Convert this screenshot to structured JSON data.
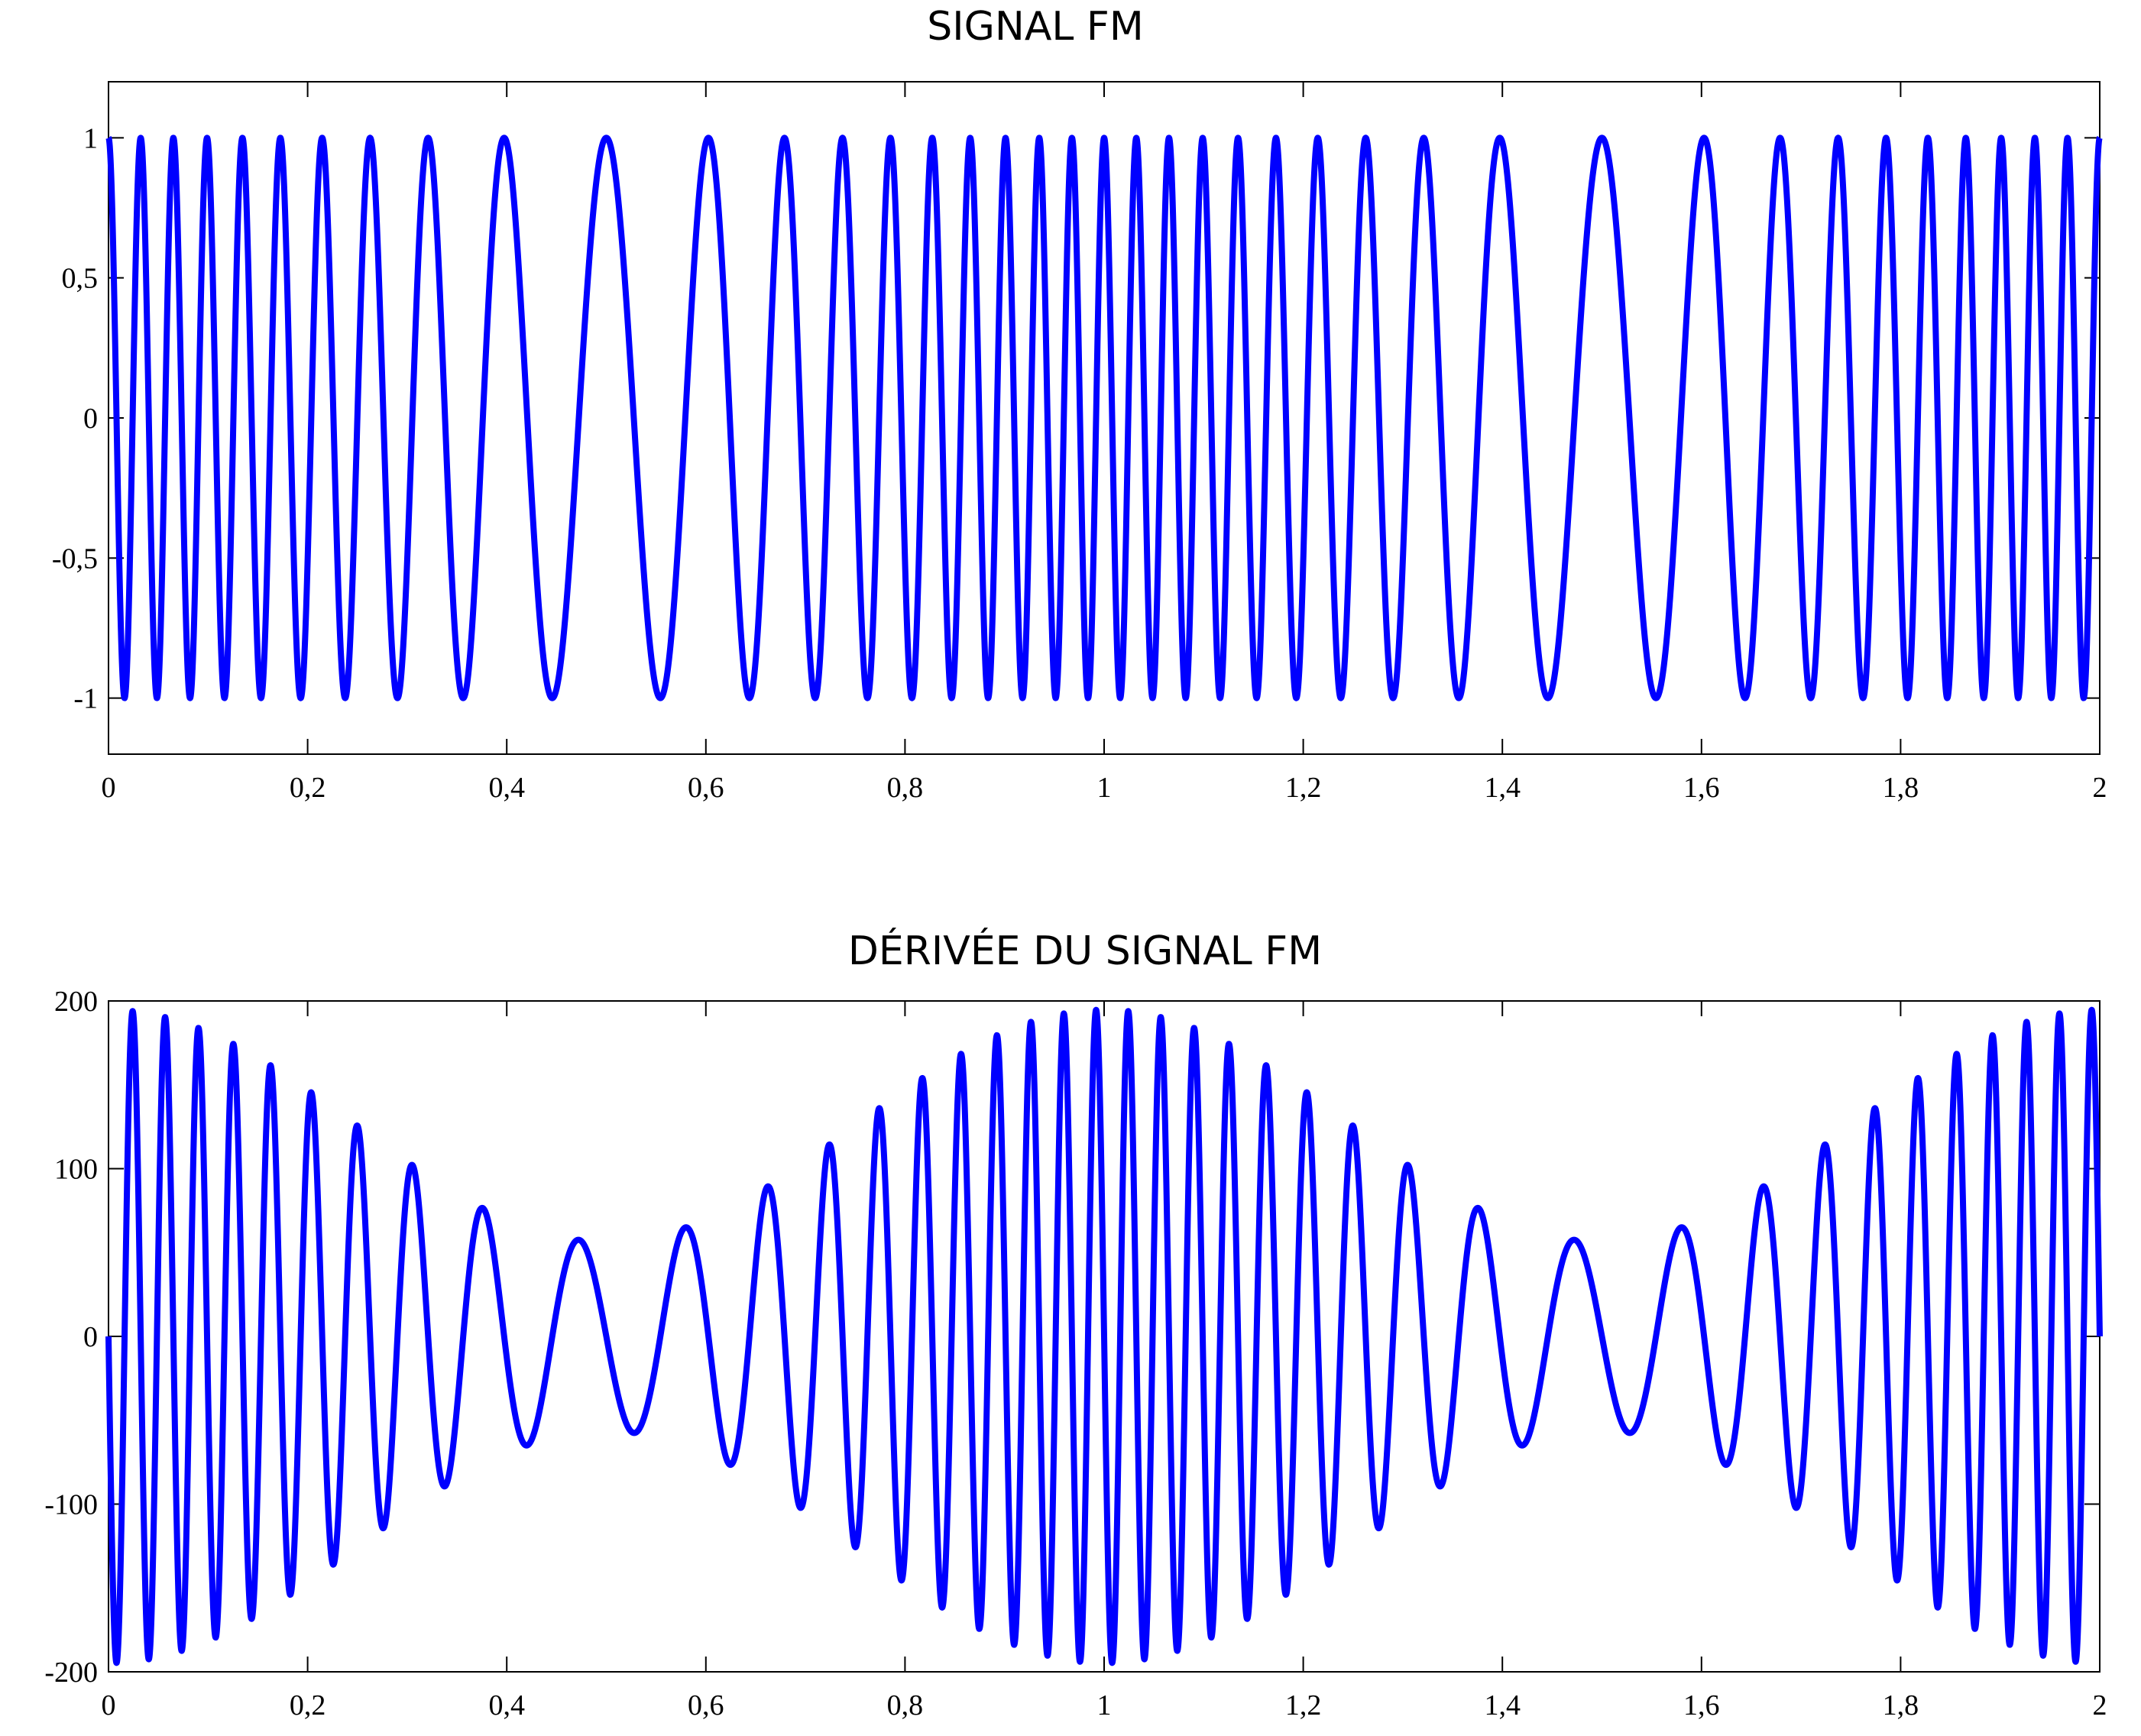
{
  "chart_data": [
    {
      "type": "line",
      "title": "SIGNAL FM",
      "xlabel": "",
      "ylabel": "",
      "xlim": [
        0,
        2
      ],
      "ylim": [
        -1.2,
        1.2
      ],
      "x_ticks": [
        0,
        0.2,
        0.4,
        0.6,
        0.8,
        1,
        1.2,
        1.4,
        1.6,
        1.8,
        2
      ],
      "x_tick_labels": [
        "0",
        "0,2",
        "0,4",
        "0,6",
        "0,8",
        "1",
        "1,2",
        "1,4",
        "1,6",
        "1,8",
        "2"
      ],
      "y_ticks": [
        1,
        0.5,
        0,
        -0.5,
        -1
      ],
      "y_tick_labels": [
        "1",
        "0,5",
        "0",
        "-0,5",
        "-1"
      ],
      "grid": false,
      "line_color": "#0000ff",
      "series": [
        {
          "function": "cos(2*pi*f0*t + beta*sin(2*pi*fm*t))",
          "x_range": [
            0,
            2
          ],
          "params": {
            "f0": 20,
            "beta": 11,
            "fm": 1
          }
        }
      ]
    },
    {
      "type": "line",
      "title": "DÉRIVÉE DU SIGNAL FM",
      "xlabel": "",
      "ylabel": "",
      "xlim": [
        0,
        2
      ],
      "ylim": [
        -200,
        200
      ],
      "x_ticks": [
        0,
        0.2,
        0.4,
        0.6,
        0.8,
        1,
        1.2,
        1.4,
        1.6,
        1.8,
        2
      ],
      "x_tick_labels": [
        "0",
        "0,2",
        "0,4",
        "0,6",
        "0,8",
        "1",
        "1,2",
        "1,4",
        "1,6",
        "1,8",
        "2"
      ],
      "y_ticks": [
        200,
        100,
        0,
        -100,
        -200
      ],
      "y_tick_labels": [
        "200",
        "100",
        "0",
        "-100",
        "-200"
      ],
      "grid": false,
      "line_color": "#0000ff",
      "series": [
        {
          "function": "-(2*pi*f0 + 2*pi*fm*beta*cos(2*pi*fm*t)) * sin(2*pi*f0*t + beta*sin(2*pi*fm*t))",
          "x_range": [
            0,
            2
          ],
          "params": {
            "f0": 20,
            "beta": 11,
            "fm": 1
          }
        }
      ]
    }
  ]
}
